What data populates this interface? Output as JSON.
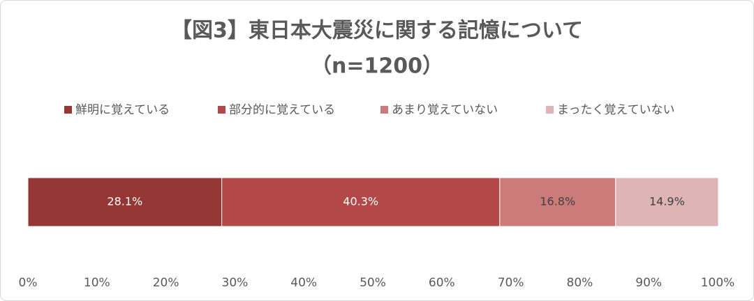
{
  "chart_data": {
    "type": "stacked-bar-horizontal",
    "title": "【図3】東日本大震災に関する記憶について",
    "subtitle": "（n=1200）",
    "categories": [
      null
    ],
    "series": [
      {
        "name": "鮮明に覚えている",
        "color": "#953735",
        "values": [
          28.1
        ],
        "value_labels": [
          "28.1%"
        ]
      },
      {
        "name": "部分的に覚えている",
        "color": "#b24848",
        "values": [
          40.3
        ],
        "value_labels": [
          "40.3%"
        ]
      },
      {
        "name": "あまり覚えていない",
        "color": "#cc7b7b",
        "values": [
          16.8
        ],
        "value_labels": [
          "16.8%"
        ]
      },
      {
        "name": "まったく覚えていない",
        "color": "#dfb4b4",
        "values": [
          14.9
        ],
        "value_labels": [
          "14.9%"
        ]
      }
    ],
    "xlim": [
      0,
      100
    ],
    "xticks": [
      {
        "value": 0,
        "label": "0%"
      },
      {
        "value": 10,
        "label": "10%"
      },
      {
        "value": 20,
        "label": "20%"
      },
      {
        "value": 30,
        "label": "30%"
      },
      {
        "value": 40,
        "label": "40%"
      },
      {
        "value": 50,
        "label": "50%"
      },
      {
        "value": 60,
        "label": "60%"
      },
      {
        "value": 70,
        "label": "70%"
      },
      {
        "value": 80,
        "label": "80%"
      },
      {
        "value": 90,
        "label": "90%"
      },
      {
        "value": 100,
        "label": "100%"
      }
    ],
    "legend": "top"
  }
}
